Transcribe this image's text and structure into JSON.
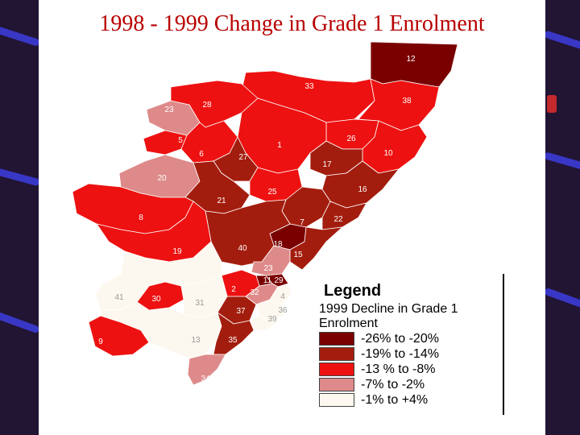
{
  "title": "1998 - 1999 Change in Grade 1 Enrolment",
  "legend": {
    "heading": "Legend",
    "subtitle": "1999 Decline in Grade 1 Enrolment",
    "classes": [
      {
        "label": "-26% to -20%",
        "color": "#7a0000"
      },
      {
        "label": "-19% to -14%",
        "color": "#a31d0e"
      },
      {
        "label": "-13 % to -8%",
        "color": "#ee1111"
      },
      {
        "label": "-7% to -2%",
        "color": "#de8a8a"
      },
      {
        "label": "-1% to +4%",
        "color": "#fdf8ef"
      }
    ]
  },
  "regions": [
    {
      "id": "12",
      "class": 0
    },
    {
      "id": "33",
      "class": 2
    },
    {
      "id": "38",
      "class": 2
    },
    {
      "id": "23",
      "class": 3
    },
    {
      "id": "28",
      "class": 2
    },
    {
      "id": "26",
      "class": 2
    },
    {
      "id": "5",
      "class": 2
    },
    {
      "id": "1",
      "class": 2
    },
    {
      "id": "10",
      "class": 2
    },
    {
      "id": "6",
      "class": 2
    },
    {
      "id": "27",
      "class": 1
    },
    {
      "id": "17",
      "class": 1
    },
    {
      "id": "20",
      "class": 3
    },
    {
      "id": "25",
      "class": 2
    },
    {
      "id": "16",
      "class": 1
    },
    {
      "id": "21",
      "class": 1
    },
    {
      "id": "8",
      "class": 2
    },
    {
      "id": "7",
      "class": 1
    },
    {
      "id": "22",
      "class": 1
    },
    {
      "id": "18",
      "class": 0
    },
    {
      "id": "40",
      "class": 1
    },
    {
      "id": "15",
      "class": 1
    },
    {
      "id": "19",
      "class": 2
    },
    {
      "id": "11",
      "class": 0
    },
    {
      "id": "29",
      "class": 0
    },
    {
      "id": "2",
      "class": 2
    },
    {
      "id": "32",
      "class": 3
    },
    {
      "id": "4",
      "class": 4
    },
    {
      "id": "41",
      "class": 4
    },
    {
      "id": "30",
      "class": 2
    },
    {
      "id": "31",
      "class": 4
    },
    {
      "id": "37",
      "class": 1
    },
    {
      "id": "36",
      "class": 4
    },
    {
      "id": "39",
      "class": 4
    },
    {
      "id": "9",
      "class": 2
    },
    {
      "id": "13",
      "class": 4
    },
    {
      "id": "35",
      "class": 1
    },
    {
      "id": "34",
      "class": 3
    }
  ]
}
